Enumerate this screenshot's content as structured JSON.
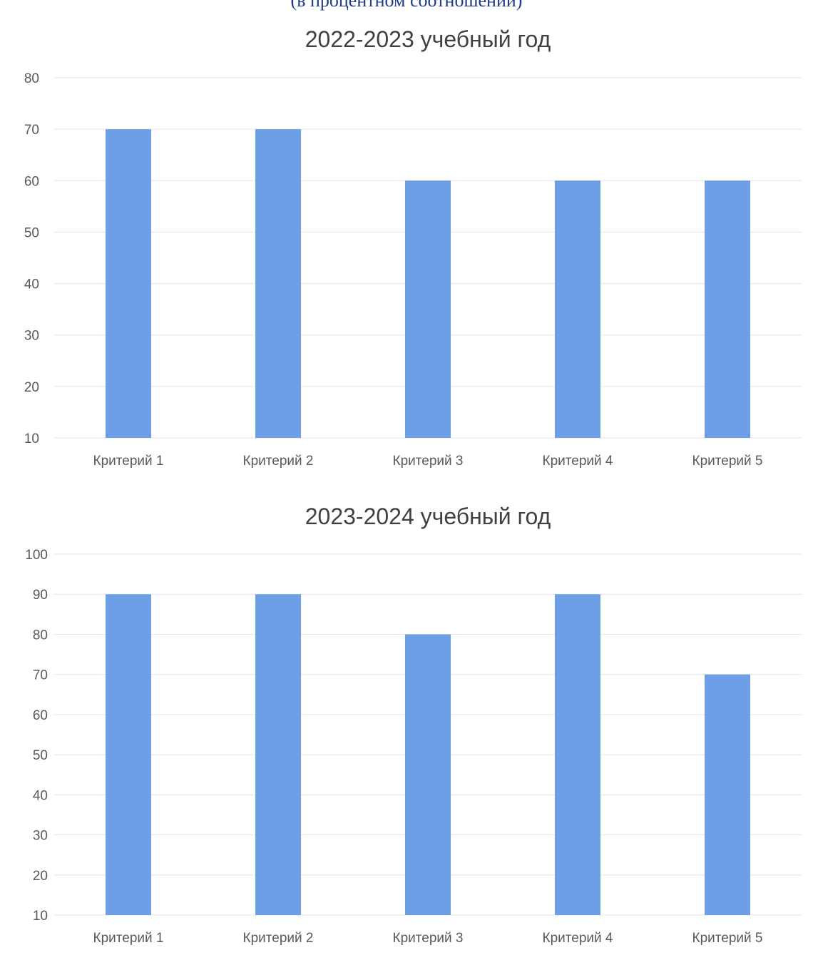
{
  "page": {
    "header_cutoff": "(в процентном соотношении)"
  },
  "chart_data": [
    {
      "type": "bar",
      "title": "2022-2023 учебный год",
      "categories": [
        "Критерий 1",
        "Критерий 2",
        "Критерий 3",
        "Критерий 4",
        "Критерий 5"
      ],
      "values": [
        70,
        70,
        60,
        60,
        60
      ],
      "ylim": [
        10,
        80
      ],
      "yticks": [
        10,
        20,
        30,
        40,
        50,
        60,
        70,
        80
      ],
      "xlabel": "",
      "ylabel": "",
      "grid": true,
      "legend": "none",
      "bar_color": "#6c9fe6"
    },
    {
      "type": "bar",
      "title": "2023-2024 учебный год",
      "categories": [
        "Критерий 1",
        "Критерий 2",
        "Критерий 3",
        "Критерий 4",
        "Критерий 5"
      ],
      "values": [
        90,
        90,
        80,
        90,
        70
      ],
      "ylim": [
        10,
        100
      ],
      "yticks": [
        10,
        20,
        30,
        40,
        50,
        60,
        70,
        80,
        90,
        100
      ],
      "xlabel": "",
      "ylabel": "",
      "grid": true,
      "legend": "none",
      "bar_color": "#6c9fe6"
    }
  ]
}
